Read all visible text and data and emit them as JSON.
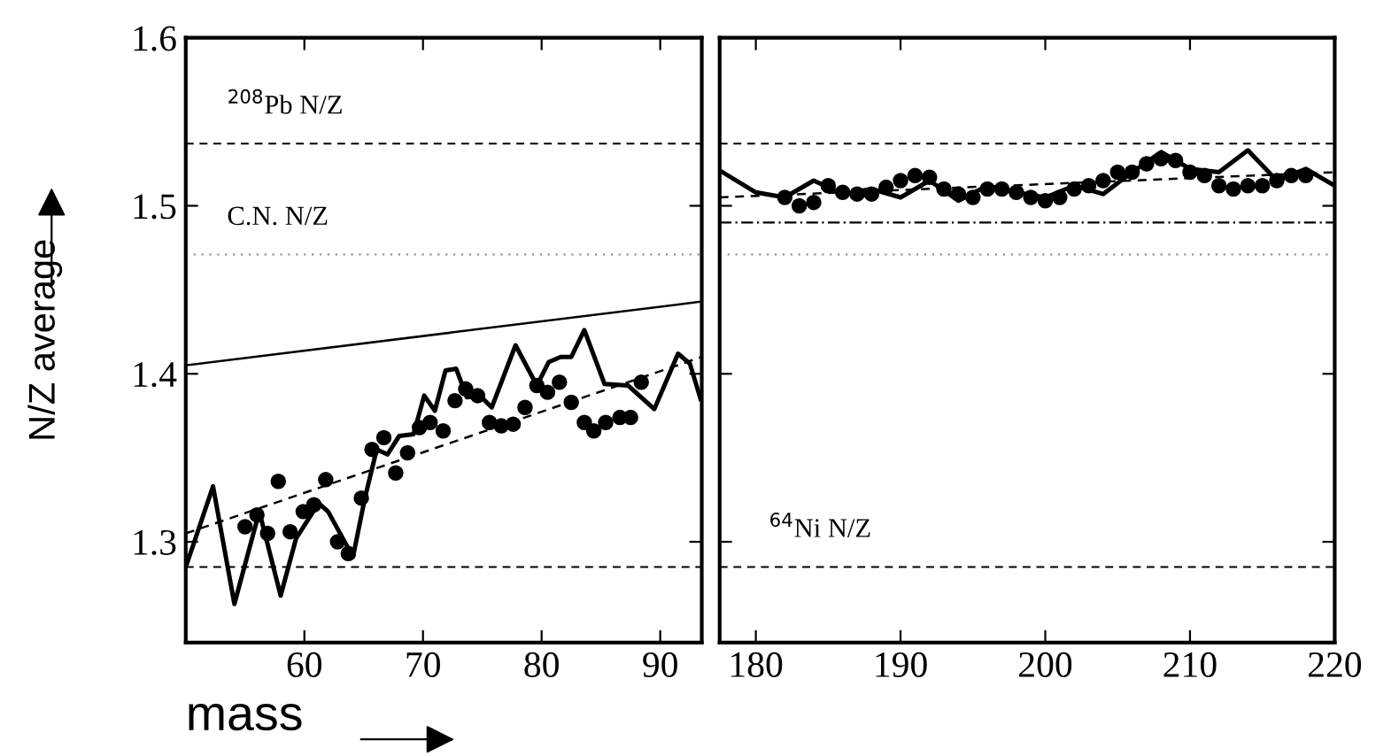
{
  "chart_data": [
    {
      "type": "line",
      "xlabel": "mass",
      "ylabel": "N/Z average",
      "xlim": [
        50,
        93.5
      ],
      "ylim": [
        1.24,
        1.6
      ],
      "xticks": [
        60,
        70,
        80,
        90
      ],
      "yticks": [
        1.3,
        1.4,
        1.5,
        1.6
      ],
      "grid": false,
      "legend": false,
      "series": [
        {
          "color": "#000000",
          "line_style": "solid",
          "x": [
            50,
            93.5
          ],
          "values": [
            1.405,
            1.443
          ]
        },
        {
          "color": "#000000",
          "line_style": "dashed",
          "x": [
            50,
            93.5
          ],
          "values": [
            1.305,
            1.41
          ]
        },
        {
          "color": "#000000",
          "line_style": "solid",
          "x": [
            50.1,
            52.3,
            54.1,
            56.2,
            58.0,
            59.3,
            61.2,
            62,
            64.1,
            65.1,
            66.1,
            67,
            68,
            69.2,
            70.1,
            71,
            71.9,
            72.8,
            73.7,
            74.8,
            75.8,
            77.8,
            79.6,
            80.6,
            81.6,
            82.5,
            83.6,
            85.3,
            87.3,
            89.5,
            91.5,
            92.5,
            93.4
          ],
          "values": [
            1.287,
            1.333,
            1.263,
            1.318,
            1.268,
            1.302,
            1.323,
            1.318,
            1.291,
            1.326,
            1.355,
            1.352,
            1.363,
            1.364,
            1.387,
            1.378,
            1.402,
            1.403,
            1.386,
            1.387,
            1.38,
            1.417,
            1.393,
            1.407,
            1.41,
            1.41,
            1.426,
            1.394,
            1.393,
            1.379,
            1.412,
            1.406,
            1.385
          ]
        },
        {
          "type": "scatter",
          "color": "#000000",
          "marker": "circle",
          "x": [
            55.0,
            56.0,
            56.9,
            57.8,
            58.8,
            59.9,
            60.8,
            61.8,
            62.8,
            63.7,
            64.8,
            65.7,
            66.7,
            67.7,
            68.7,
            69.7,
            70.6,
            71.7,
            72.7,
            73.6,
            74.6,
            75.6,
            76.6,
            77.6,
            78.6,
            79.6,
            80.5,
            81.5,
            82.5,
            83.6,
            84.4,
            85.4,
            86.6,
            87.5,
            88.4
          ],
          "values": [
            1.309,
            1.316,
            1.305,
            1.336,
            1.306,
            1.318,
            1.322,
            1.337,
            1.3,
            1.293,
            1.326,
            1.355,
            1.362,
            1.341,
            1.353,
            1.368,
            1.371,
            1.366,
            1.384,
            1.391,
            1.387,
            1.371,
            1.369,
            1.37,
            1.38,
            1.393,
            1.389,
            1.395,
            1.383,
            1.371,
            1.366,
            1.371,
            1.374,
            1.374,
            1.395
          ]
        }
      ],
      "ref_lines": [
        {
          "axis": "y",
          "value": 1.537,
          "label": "$^{208}$Pb N/Z",
          "color": "#000000",
          "line_style": "dashed"
        },
        {
          "axis": "y",
          "value": 1.471,
          "label": "C.N. N/Z",
          "color": "#888888",
          "line_style": "dotted"
        },
        {
          "axis": "y",
          "value": 1.285,
          "color": "#000000",
          "line_style": "dashed"
        }
      ]
    },
    {
      "type": "line",
      "xlim": [
        177.5,
        220
      ],
      "ylim": [
        1.24,
        1.6
      ],
      "xticks": [
        180,
        190,
        200,
        210,
        220
      ],
      "yticks": [
        1.3,
        1.4,
        1.5,
        1.6
      ],
      "tick_labels": "x",
      "grid": false,
      "legend": false,
      "series": [
        {
          "color": "#000000",
          "line_style": "dashed",
          "x": [
            177.5,
            220
          ],
          "values": [
            1.505,
            1.52
          ]
        },
        {
          "color": "#000000",
          "line_style": "solid",
          "x": [
            177.7,
            180,
            182,
            184,
            186,
            188,
            190,
            192,
            194,
            196,
            198,
            200,
            202,
            204,
            206,
            208,
            210,
            212,
            214,
            216,
            218,
            220
          ],
          "values": [
            1.52,
            1.508,
            1.505,
            1.515,
            1.507,
            1.51,
            1.505,
            1.515,
            1.503,
            1.512,
            1.508,
            1.505,
            1.512,
            1.507,
            1.52,
            1.532,
            1.522,
            1.52,
            1.533,
            1.515,
            1.522,
            1.512
          ]
        },
        {
          "type": "scatter",
          "color": "#000000",
          "marker": "circle",
          "x": [
            182,
            183,
            184,
            185,
            186,
            187,
            188,
            189,
            190,
            191,
            192,
            193,
            194,
            195,
            196,
            197,
            198,
            199,
            200,
            201,
            202,
            203,
            204,
            205,
            206,
            207,
            208,
            209,
            210,
            211,
            212,
            213,
            214,
            215,
            216,
            217,
            218
          ],
          "values": [
            1.505,
            1.5,
            1.502,
            1.512,
            1.508,
            1.507,
            1.507,
            1.511,
            1.515,
            1.518,
            1.517,
            1.51,
            1.507,
            1.505,
            1.51,
            1.51,
            1.508,
            1.505,
            1.503,
            1.505,
            1.51,
            1.512,
            1.515,
            1.52,
            1.52,
            1.525,
            1.528,
            1.527,
            1.52,
            1.518,
            1.512,
            1.51,
            1.512,
            1.512,
            1.515,
            1.518,
            1.518
          ]
        }
      ],
      "ref_lines": [
        {
          "axis": "y",
          "value": 1.537,
          "color": "#000000",
          "line_style": "dashed"
        },
        {
          "axis": "y",
          "value": 1.49,
          "color": "#000000",
          "line_style": "dashdot"
        },
        {
          "axis": "y",
          "value": 1.471,
          "color": "#888888",
          "line_style": "dotted"
        },
        {
          "axis": "y",
          "value": 1.285,
          "label": "$^{64}$Ni N/Z",
          "color": "#000000",
          "line_style": "dashed"
        }
      ]
    }
  ]
}
